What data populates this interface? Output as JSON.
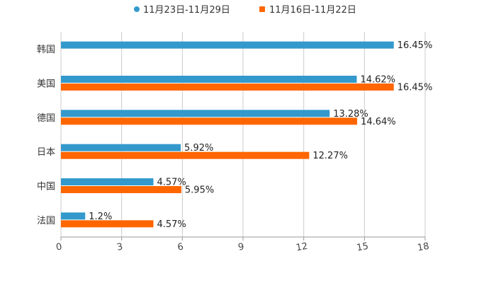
{
  "chart_data": {
    "type": "bar",
    "orientation": "horizontal",
    "categories": [
      "韩国",
      "美国",
      "德国",
      "日本",
      "中国",
      "法国"
    ],
    "series": [
      {
        "name": "11月23日-11月29日",
        "color": "#3399cc",
        "values": [
          16.45,
          14.62,
          13.28,
          5.92,
          4.57,
          1.2
        ],
        "labels": [
          "16.45%",
          "14.62%",
          "13.28%",
          "5.92%",
          "4.57%",
          "1.2%"
        ]
      },
      {
        "name": "11月16日-11月22日",
        "color": "#ff6600",
        "values": [
          null,
          16.45,
          14.64,
          12.27,
          5.95,
          4.57
        ],
        "labels": [
          null,
          "16.45%",
          "14.64%",
          "12.27%",
          "5.95%",
          "4.57%"
        ]
      }
    ],
    "xlim": [
      0,
      18
    ],
    "xticks": [
      0,
      3,
      6,
      9,
      12,
      15,
      18
    ],
    "xtick_labels": [
      "0",
      "3",
      "6",
      "9",
      "12",
      "15",
      "18"
    ],
    "title": "",
    "xlabel": "",
    "ylabel": "",
    "grid": "vertical",
    "legend_position": "top-center"
  }
}
